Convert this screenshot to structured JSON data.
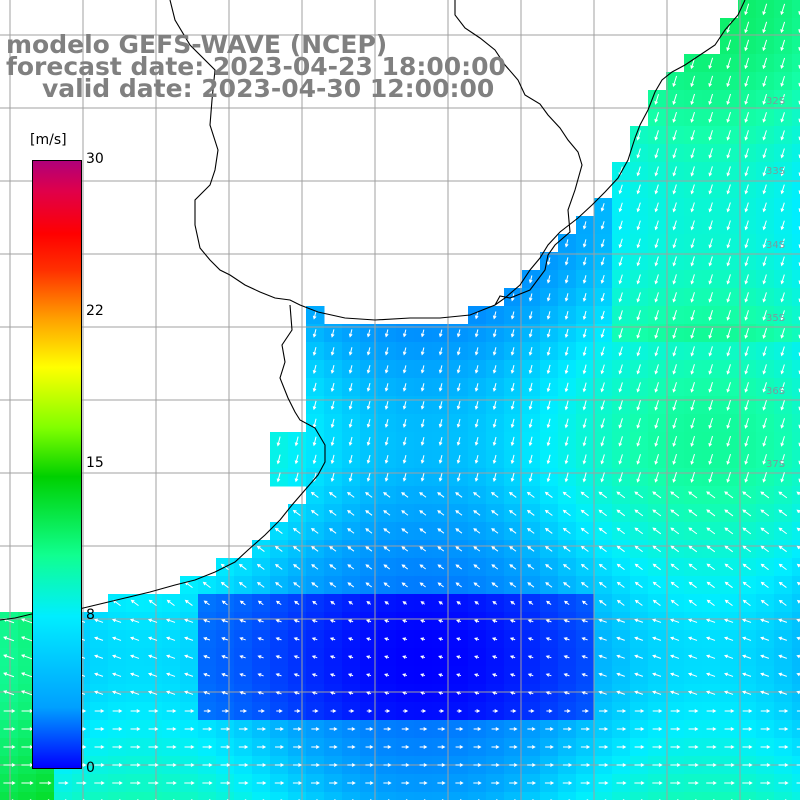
{
  "title": {
    "line1": "modelo GEFS-WAVE (NCEP)",
    "line2": "forecast date: 2023-04-23 18:00:00",
    "line3": "valid date: 2023-04-30 12:00:00"
  },
  "colorbar": {
    "unit": "[m/s]",
    "ticks": [
      {
        "label": "30",
        "value": 30
      },
      {
        "label": "22",
        "value": 22
      },
      {
        "label": "15",
        "value": 15
      },
      {
        "label": "8",
        "value": 8
      },
      {
        "label": "0",
        "value": 0
      }
    ],
    "colors": [
      "#0000ff",
      "#00a0ff",
      "#00eeff",
      "#10ff90",
      "#00d000",
      "#80ff00",
      "#ffff00",
      "#ffa000",
      "#ff3000",
      "#ff0000",
      "#e0004a",
      "#b0007a"
    ]
  },
  "lat_labels": [
    "32S",
    "33S",
    "34S",
    "35S",
    "36S",
    "37S"
  ],
  "land_color": "#ffffff",
  "coast_color": "#000000",
  "grid_color": "#a0a0a0"
}
